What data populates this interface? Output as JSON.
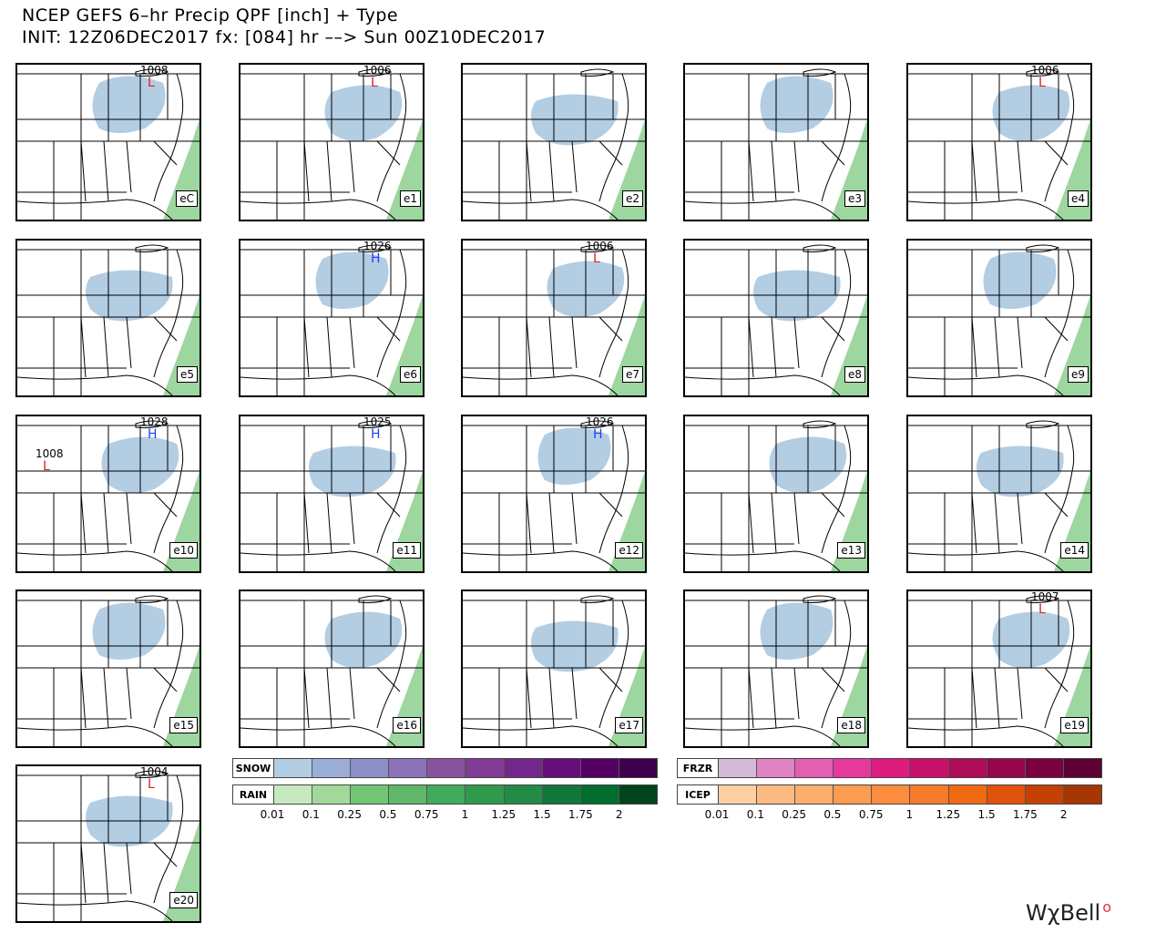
{
  "title_line1": "NCEP GEFS 6–hr Precip QPF [inch] + Type",
  "title_line2": "INIT: 12Z06DEC2017 fx: [084] hr ––> Sun 00Z10DEC2017",
  "panels": [
    {
      "label": "eC",
      "pressure_labels": [
        {
          "kind": "L",
          "value": "1008"
        }
      ]
    },
    {
      "label": "e1",
      "pressure_labels": [
        {
          "kind": "L",
          "value": "1006"
        }
      ]
    },
    {
      "label": "e2",
      "pressure_labels": []
    },
    {
      "label": "e3",
      "pressure_labels": []
    },
    {
      "label": "e4",
      "pressure_labels": [
        {
          "kind": "L",
          "value": "1006"
        }
      ]
    },
    {
      "label": "e5",
      "pressure_labels": []
    },
    {
      "label": "e6",
      "pressure_labels": [
        {
          "kind": "H",
          "value": "1026"
        }
      ]
    },
    {
      "label": "e7",
      "pressure_labels": [
        {
          "kind": "L",
          "value": "1006"
        }
      ]
    },
    {
      "label": "e8",
      "pressure_labels": []
    },
    {
      "label": "e9",
      "pressure_labels": []
    },
    {
      "label": "e10",
      "pressure_labels": [
        {
          "kind": "H",
          "value": "1028"
        },
        {
          "kind": "L",
          "value": "1008"
        }
      ]
    },
    {
      "label": "e11",
      "pressure_labels": [
        {
          "kind": "H",
          "value": "1025"
        }
      ]
    },
    {
      "label": "e12",
      "pressure_labels": [
        {
          "kind": "H",
          "value": "1026"
        }
      ]
    },
    {
      "label": "e13",
      "pressure_labels": []
    },
    {
      "label": "e14",
      "pressure_labels": []
    },
    {
      "label": "e15",
      "pressure_labels": []
    },
    {
      "label": "e16",
      "pressure_labels": []
    },
    {
      "label": "e17",
      "pressure_labels": []
    },
    {
      "label": "e18",
      "pressure_labels": []
    },
    {
      "label": "e19",
      "pressure_labels": [
        {
          "kind": "L",
          "value": "1007"
        }
      ]
    },
    {
      "label": "e20",
      "pressure_labels": [
        {
          "kind": "L",
          "value": "1004"
        }
      ]
    }
  ],
  "legend": {
    "snow_label": "SNOW",
    "rain_label": "RAIN",
    "frzr_label": "FRZR",
    "icep_label": "ICEP",
    "ticks": [
      "0.01",
      "0.1",
      "0.25",
      "0.5",
      "0.75",
      "1",
      "1.25",
      "1.5",
      "1.75",
      "2"
    ],
    "snow_colors": [
      "#b3cde3",
      "#9aaed6",
      "#8c8fc6",
      "#8a72b8",
      "#88539f",
      "#813c95",
      "#74278a",
      "#650f79",
      "#530062",
      "#3d004b"
    ],
    "rain_colors": [
      "#c7e9c0",
      "#a1d99b",
      "#74c476",
      "#5fb867",
      "#41ab5d",
      "#2f9a4c",
      "#238b45",
      "#11773a",
      "#006d2c",
      "#00441b"
    ],
    "frzr_colors": [
      "#d4b9da",
      "#df83c2",
      "#e35fb2",
      "#e7389d",
      "#de1b7f",
      "#c8106a",
      "#ae0b59",
      "#94054d",
      "#7a0042",
      "#5e0033"
    ],
    "icep_colors": [
      "#fdd0a2",
      "#fdbb84",
      "#fdae6b",
      "#fd9b50",
      "#fd8d3c",
      "#f67b2a",
      "#f16913",
      "#e0530a",
      "#c44103",
      "#a63603"
    ]
  },
  "brand": "WχBell"
}
